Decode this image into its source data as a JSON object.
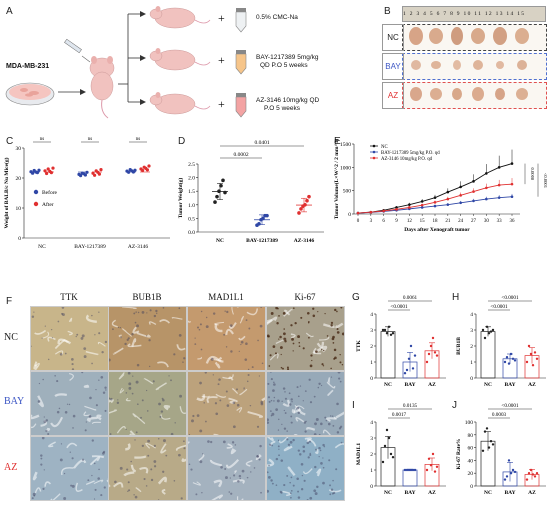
{
  "panels": {
    "A": "A",
    "B": "B",
    "C": "C",
    "D": "D",
    "E": "E",
    "F": "F",
    "G": "G",
    "H": "H",
    "I": "I",
    "J": "J"
  },
  "panel_A": {
    "cell_line": "MDA-MB-231",
    "treatments": [
      {
        "label_lines": [
          "0.5% CMC-Na"
        ],
        "tube_color": "#eef1f3"
      },
      {
        "label_lines": [
          "BAY-1217389   5mg/kg",
          "QD    P.O    5 weeks"
        ],
        "tube_color": "#f6c58a"
      },
      {
        "label_lines": [
          "AZ-3146   10mg/kg  QD",
          "P.O   5 weeks"
        ],
        "tube_color": "#f3a3a3"
      }
    ]
  },
  "panel_B": {
    "groups": [
      {
        "label": "NC",
        "color": "#222222",
        "border": "#444444"
      },
      {
        "label": "BAY",
        "color": "#3b55c4",
        "border": "#5070d0"
      },
      {
        "label": "AZ",
        "color": "#e03030",
        "border": "#e05050"
      }
    ],
    "ruler_text": "1 2 3 4 5 6 7 8 9 10 11 12 13 14 15"
  },
  "chart_data": [
    {
      "panel": "C",
      "type": "scatter",
      "ylabel": "Weight of BALB/c Nu Mice(g)",
      "categories": [
        "NC",
        "BAY-1217389",
        "AZ-3146"
      ],
      "ylim": [
        0,
        30
      ],
      "yticks": [
        "0",
        "10",
        "20",
        "30"
      ],
      "series": [
        {
          "name": "Before",
          "color": "#2f47a6",
          "values": [
            [
              22.1,
              21.6,
              22.5,
              22.0,
              21.8,
              22.6
            ],
            [
              21.2,
              20.8,
              21.6,
              21.4,
              21.0,
              21.9
            ],
            [
              22.3,
              21.9,
              22.8,
              22.4,
              22.0,
              22.6
            ]
          ]
        },
        {
          "name": "After",
          "color": "#e03030",
          "values": [
            [
              22.4,
              21.5,
              23.0,
              22.2,
              21.8,
              23.3
            ],
            [
              21.6,
              20.9,
              22.4,
              21.9,
              21.3,
              22.8
            ],
            [
              23.0,
              22.5,
              23.6,
              23.2,
              22.7,
              24.0
            ]
          ]
        }
      ],
      "significance": [
        "ns",
        "ns",
        "ns"
      ]
    },
    {
      "panel": "D",
      "type": "scatter",
      "ylabel": "Tumor Weight(g)",
      "categories": [
        "NC",
        "BAY-1217389",
        "AZ-3146"
      ],
      "colors": [
        "#222222",
        "#2f47a6",
        "#e03030"
      ],
      "ylim": [
        0,
        2.5
      ],
      "yticks": [
        "0.0",
        "0.5",
        "1.0",
        "1.5",
        "2.0",
        "2.5"
      ],
      "points": [
        [
          1.1,
          1.3,
          1.5,
          1.7,
          1.9,
          1.45
        ],
        [
          0.25,
          0.3,
          0.45,
          0.5,
          0.6,
          0.6
        ],
        [
          0.7,
          0.85,
          0.95,
          1.0,
          1.15,
          1.3
        ]
      ],
      "means": [
        1.49,
        0.45,
        0.99
      ],
      "sd": [
        0.3,
        0.18,
        0.25
      ],
      "brackets": [
        {
          "from": 0,
          "to": 1,
          "p": "0.0002"
        },
        {
          "from": 0,
          "to": 2,
          "p": "0.0401"
        }
      ]
    },
    {
      "panel": "E",
      "type": "line",
      "xlabel": "Days after Xenograft tumor",
      "ylabel": "Tumor Volume(L×W^2 / 2 mm^3)",
      "x": [
        0,
        3,
        6,
        9,
        12,
        15,
        18,
        21,
        24,
        27,
        30,
        33,
        36
      ],
      "ylim": [
        0,
        1500
      ],
      "yticks": [
        "0",
        "500",
        "1000",
        "1500"
      ],
      "series": [
        {
          "name": "NC",
          "color": "#111111",
          "values": [
            20,
            40,
            80,
            140,
            200,
            270,
            350,
            470,
            580,
            700,
            870,
            1000,
            1080
          ],
          "err": [
            5,
            10,
            20,
            30,
            40,
            50,
            60,
            80,
            120,
            150,
            200,
            250,
            300
          ]
        },
        {
          "name": "BAY-1217389 5mg/kg P.O. qd",
          "color": "#2f47a6",
          "values": [
            20,
            35,
            55,
            80,
            110,
            140,
            170,
            200,
            240,
            280,
            320,
            350,
            370
          ],
          "err": [
            5,
            8,
            10,
            15,
            20,
            25,
            30,
            35,
            40,
            45,
            50,
            55,
            60
          ]
        },
        {
          "name": "AZ-3146 10mg/kg P.O. qd",
          "color": "#e03030",
          "values": [
            20,
            38,
            65,
            100,
            140,
            190,
            250,
            320,
            400,
            480,
            560,
            620,
            640
          ],
          "err": [
            5,
            9,
            15,
            20,
            25,
            30,
            40,
            50,
            60,
            70,
            90,
            110,
            130
          ]
        }
      ],
      "side_p": [
        "0.0008",
        "<0.0001"
      ]
    },
    {
      "panel": "G",
      "type": "bar",
      "ylabel": "TTK",
      "categories": [
        "NC",
        "BAY",
        "AZ"
      ],
      "colors": [
        "#222222",
        "#2f47a6",
        "#e03030"
      ],
      "ylim": [
        0,
        4
      ],
      "yticks": [
        "0",
        "1",
        "2",
        "3",
        "4"
      ],
      "values": [
        2.9,
        1.0,
        1.7
      ],
      "err": [
        0.3,
        0.6,
        0.5
      ],
      "points": [
        [
          3,
          3,
          2.8,
          3.2,
          2.7,
          2.8
        ],
        [
          0.3,
          0.5,
          1.2,
          2.0,
          0.6,
          1.4
        ],
        [
          1.0,
          1.5,
          2.0,
          2.5,
          1.6,
          1.4
        ]
      ],
      "brackets": [
        {
          "from": 0,
          "to": 1,
          "p": "<0.0001"
        },
        {
          "from": 0,
          "to": 2,
          "p": "0.0061"
        }
      ]
    },
    {
      "panel": "H",
      "type": "bar",
      "ylabel": "BUB1B",
      "categories": [
        "NC",
        "BAY",
        "AZ"
      ],
      "colors": [
        "#222222",
        "#2f47a6",
        "#e03030"
      ],
      "ylim": [
        0,
        4
      ],
      "yticks": [
        "0",
        "1",
        "2",
        "3",
        "4"
      ],
      "values": [
        2.9,
        1.2,
        1.4
      ],
      "err": [
        0.3,
        0.3,
        0.5
      ],
      "points": [
        [
          3,
          2.5,
          3.2,
          2.8,
          2.9,
          3.0
        ],
        [
          1,
          1.3,
          0.9,
          1.5,
          1.2,
          1.1
        ],
        [
          1,
          2,
          1.5,
          0.8,
          1.6,
          1.2
        ]
      ],
      "brackets": [
        {
          "from": 0,
          "to": 1,
          "p": "<0.0001"
        },
        {
          "from": 0,
          "to": 2,
          "p": "<0.0001"
        }
      ]
    },
    {
      "panel": "I",
      "type": "bar",
      "ylabel": "MAD1L1",
      "categories": [
        "NC",
        "BAY",
        "AZ"
      ],
      "colors": [
        "#222222",
        "#2f47a6",
        "#e03030"
      ],
      "ylim": [
        0,
        4
      ],
      "yticks": [
        "0",
        "1",
        "2",
        "3",
        "4"
      ],
      "values": [
        2.4,
        1.0,
        1.35
      ],
      "err": [
        0.7,
        0.05,
        0.4
      ],
      "points": [
        [
          1.5,
          2.5,
          3.5,
          3.0,
          2.0,
          1.8
        ],
        [
          1,
          1,
          1,
          1,
          1,
          1
        ],
        [
          1,
          1.7,
          1.3,
          2.0,
          0.9,
          1.2
        ]
      ],
      "brackets": [
        {
          "from": 0,
          "to": 1,
          "p": "0.0017"
        },
        {
          "from": 0,
          "to": 2,
          "p": "0.0135"
        }
      ]
    },
    {
      "panel": "J",
      "type": "bar",
      "ylabel": "Ki-67 Rate%",
      "categories": [
        "NC",
        "BAY",
        "AZ"
      ],
      "colors": [
        "#222222",
        "#2f47a6",
        "#e03030"
      ],
      "ylim": [
        0,
        100
      ],
      "yticks": [
        "0",
        "20",
        "40",
        "60",
        "80",
        "100"
      ],
      "values": [
        70,
        22,
        18
      ],
      "err": [
        15,
        15,
        8
      ],
      "points": [
        [
          55,
          85,
          90,
          60,
          70,
          65
        ],
        [
          10,
          15,
          40,
          20,
          25,
          22
        ],
        [
          10,
          20,
          25,
          18,
          15,
          20
        ]
      ],
      "brackets": [
        {
          "from": 0,
          "to": 1,
          "p": "0.0003"
        },
        {
          "from": 0,
          "to": 2,
          "p": "<0.0001"
        }
      ]
    }
  ],
  "panel_F": {
    "columns": [
      "TTK",
      "BUB1B",
      "MAD1L1",
      "Ki-67"
    ],
    "rows": [
      {
        "label": "NC",
        "color": "#222222"
      },
      {
        "label": "BAY",
        "color": "#3b55c4"
      },
      {
        "label": "AZ",
        "color": "#e03030"
      }
    ],
    "tiles": [
      [
        "#c8b58a",
        "#b79468",
        "#c49a6e",
        "#a8a08c"
      ],
      [
        "#9fb0bc",
        "#a6a688",
        "#bca27c",
        "#97a9b8"
      ],
      [
        "#9eb3c3",
        "#b8aa88",
        "#a4b2bf",
        "#8fb0c6"
      ]
    ]
  }
}
